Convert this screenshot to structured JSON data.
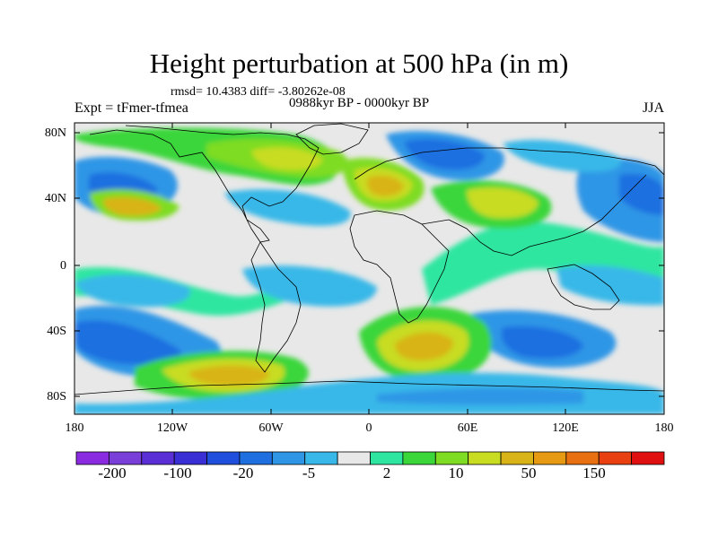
{
  "map": {
    "title": "Height perturbation at 500 hPa (in m)",
    "stats": "rmsd= 10.4383 diff= -3.80262e-08",
    "experiment": "Expt = tFmer-tfmea",
    "period": "0988kyr BP - 0000kyr BP",
    "season": "JJA",
    "lat_ticks": [
      "80N",
      "40N",
      "0",
      "40S",
      "80S"
    ],
    "lon_ticks": [
      "180",
      "120W",
      "60W",
      "0",
      "60E",
      "120E",
      "180"
    ],
    "lon_range": [
      -180,
      180
    ],
    "lat_range": [
      -90,
      90
    ]
  },
  "colorbar": {
    "labels": [
      "-200",
      "-100",
      "-20",
      "-5",
      "2",
      "10",
      "50",
      "150"
    ],
    "colors": [
      "#8a2be2",
      "#7b3fd9",
      "#5a2fd6",
      "#3a2fd4",
      "#1f4fdc",
      "#1f6fe0",
      "#2f96e6",
      "#38b8e8",
      "#e8e8e8",
      "#2ee6a0",
      "#3ad63a",
      "#7edc22",
      "#c8dc22",
      "#d8b418",
      "#e69a14",
      "#e87010",
      "#e84010",
      "#e01010"
    ]
  },
  "anomalies": [
    {
      "region": "North Atlantic / Europe",
      "lon": -5,
      "lat": 50,
      "sign": "positive",
      "level": "30-50"
    },
    {
      "region": "Greenland",
      "lon": -40,
      "lat": 70,
      "sign": "positive",
      "level": "20-30"
    },
    {
      "region": "North Pacific",
      "lon": -150,
      "lat": 50,
      "sign": "negative",
      "level": "-20"
    },
    {
      "region": "Scandinavia / Arctic",
      "lon": 45,
      "lat": 70,
      "sign": "negative",
      "level": "-20"
    },
    {
      "region": "Central Asia",
      "lon": 60,
      "lat": 45,
      "sign": "positive",
      "level": "20-30"
    },
    {
      "region": "West Pacific",
      "lon": 170,
      "lat": 45,
      "sign": "negative",
      "level": "-20"
    },
    {
      "region": "South Atlantic / Indian Ocean",
      "lon": 45,
      "lat": -50,
      "sign": "positive",
      "level": "30-50"
    },
    {
      "region": "South Pacific",
      "lon": -80,
      "lat": -65,
      "sign": "positive",
      "level": "30-50"
    },
    {
      "region": "Southwest Pacific",
      "lon": -150,
      "lat": -45,
      "sign": "negative",
      "level": "-20"
    },
    {
      "region": "Southern Indian Ocean",
      "lon": 100,
      "lat": -50,
      "sign": "negative",
      "level": "-20"
    }
  ]
}
